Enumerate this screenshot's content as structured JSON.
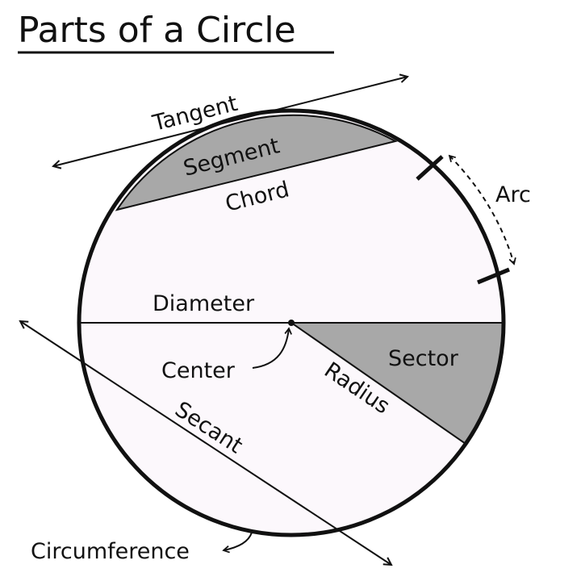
{
  "title": "Parts of a Circle",
  "labels": {
    "tangent": "Tangent",
    "segment": "Segment",
    "chord": "Chord",
    "arc": "Arc",
    "diameter": "Diameter",
    "center": "Center",
    "sector": "Sector",
    "radius": "Radius",
    "secant": "Secant",
    "circumference": "Circumference"
  },
  "colors": {
    "fill": "#fcf8fc",
    "shaded": "#a8a8a8",
    "stroke": "#111111"
  }
}
